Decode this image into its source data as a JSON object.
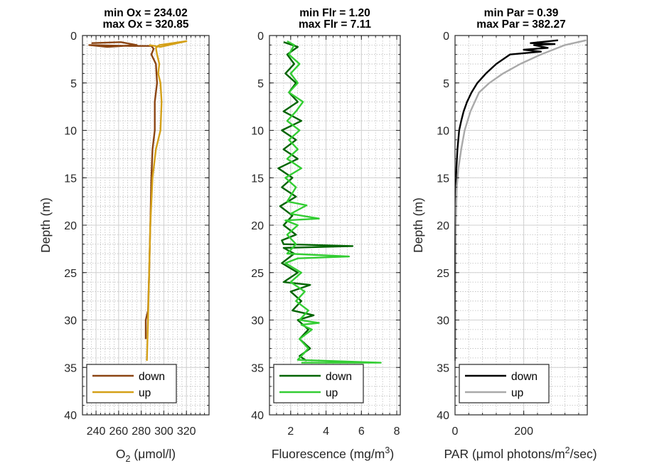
{
  "chart_data": [
    {
      "type": "line",
      "title": [
        "min Ox = 234.02",
        "max Ox = 320.85"
      ],
      "xlabel": "O_2 (μmol/l)",
      "ylabel": "Depth (m)",
      "xlim": [
        228,
        340
      ],
      "ylim": [
        0,
        40
      ],
      "y_reversed": true,
      "x_ticks": [
        240,
        260,
        280,
        300,
        320
      ],
      "y_ticks": [
        0,
        5,
        10,
        15,
        20,
        25,
        30,
        35,
        40
      ],
      "grid": true,
      "legend": "bottom-left",
      "series": [
        {
          "name": "down",
          "color": "#8b4513",
          "points": [
            [
              236,
              0.8
            ],
            [
              262,
              0.7
            ],
            [
              276,
              1.0
            ],
            [
              250,
              1.2
            ],
            [
              234,
              1.0
            ],
            [
              270,
              1.1
            ],
            [
              289,
              1.1
            ],
            [
              291,
              1.4
            ],
            [
              289,
              2.0
            ],
            [
              293,
              3.0
            ],
            [
              294,
              5.0
            ],
            [
              292,
              7.0
            ],
            [
              292,
              10.0
            ],
            [
              290,
              12.0
            ],
            [
              289,
              15.0
            ],
            [
              288,
              20.0
            ],
            [
              287,
              25.0
            ],
            [
              286,
              29.0
            ],
            [
              284,
              30.0
            ],
            [
              284,
              32.0
            ]
          ]
        },
        {
          "name": "up",
          "color": "#d4a017",
          "points": [
            [
              285,
              34.3
            ],
            [
              286,
              30.0
            ],
            [
              287,
              25.0
            ],
            [
              288,
              20.0
            ],
            [
              290,
              15.0
            ],
            [
              293,
              12.0
            ],
            [
              297,
              10.0
            ],
            [
              298,
              7.0
            ],
            [
              297,
              5.0
            ],
            [
              295,
              4.0
            ],
            [
              296,
              3.0
            ],
            [
              294,
              2.0
            ],
            [
              293,
              1.3
            ],
            [
              296,
              1.0
            ],
            [
              320,
              0.6
            ],
            [
              297,
              1.2
            ],
            [
              287,
              1.0
            ]
          ]
        }
      ]
    },
    {
      "type": "line",
      "title": [
        "min Flr = 1.20",
        "max Flr = 7.11"
      ],
      "xlabel": "Fluorescence (mg/m^3)",
      "ylabel": "",
      "xlim": [
        0.8,
        8.2
      ],
      "ylim": [
        0,
        40
      ],
      "y_reversed": true,
      "x_ticks": [
        2,
        4,
        6,
        8
      ],
      "y_ticks": [
        0,
        5,
        10,
        15,
        20,
        25,
        30,
        35,
        40
      ],
      "grid": true,
      "legend": "bottom-left",
      "series": [
        {
          "name": "down",
          "color": "#006400",
          "points": [
            [
              1.6,
              0.7
            ],
            [
              2.4,
              1.2
            ],
            [
              1.8,
              2.0
            ],
            [
              2.2,
              3.0
            ],
            [
              1.7,
              4.0
            ],
            [
              2.3,
              5.0
            ],
            [
              1.9,
              6.0
            ],
            [
              2.4,
              7.0
            ],
            [
              1.6,
              8.0
            ],
            [
              2.6,
              9.0
            ],
            [
              1.5,
              10.0
            ],
            [
              2.3,
              11.0
            ],
            [
              1.6,
              12.0
            ],
            [
              2.4,
              13.0
            ],
            [
              1.3,
              14.0
            ],
            [
              2.1,
              15.0
            ],
            [
              1.5,
              16.0
            ],
            [
              2.3,
              17.0
            ],
            [
              1.4,
              18.0
            ],
            [
              2.1,
              19.0
            ],
            [
              1.6,
              20.0
            ],
            [
              2.3,
              21.0
            ],
            [
              1.5,
              21.6
            ],
            [
              1.6,
              22.0
            ],
            [
              5.5,
              22.2
            ],
            [
              1.6,
              22.4
            ],
            [
              2.2,
              23.0
            ],
            [
              1.5,
              24.0
            ],
            [
              2.4,
              25.0
            ],
            [
              1.6,
              26.0
            ],
            [
              3.1,
              26.3
            ],
            [
              2.0,
              27.0
            ],
            [
              2.6,
              28.0
            ],
            [
              2.1,
              29.0
            ],
            [
              3.3,
              29.5
            ],
            [
              2.4,
              30.0
            ],
            [
              3.0,
              31.0
            ],
            [
              2.5,
              32.0
            ],
            [
              3.1,
              33.0
            ],
            [
              2.5,
              33.8
            ],
            [
              2.9,
              34.3
            ]
          ]
        },
        {
          "name": "up",
          "color": "#32cd32",
          "points": [
            [
              2.6,
              34.5
            ],
            [
              7.1,
              34.5
            ],
            [
              2.4,
              34.2
            ],
            [
              3.0,
              33.0
            ],
            [
              2.5,
              32.0
            ],
            [
              3.2,
              31.0
            ],
            [
              2.6,
              30.5
            ],
            [
              3.6,
              30.3
            ],
            [
              2.5,
              30.0
            ],
            [
              3.0,
              29.0
            ],
            [
              2.3,
              28.0
            ],
            [
              2.8,
              27.0
            ],
            [
              2.0,
              26.0
            ],
            [
              2.6,
              25.0
            ],
            [
              1.7,
              24.0
            ],
            [
              2.4,
              23.5
            ],
            [
              5.3,
              23.3
            ],
            [
              1.8,
              23.0
            ],
            [
              2.3,
              22.0
            ],
            [
              1.8,
              21.0
            ],
            [
              2.4,
              20.0
            ],
            [
              1.7,
              19.5
            ],
            [
              3.6,
              19.3
            ],
            [
              2.0,
              18.8
            ],
            [
              2.9,
              17.9
            ],
            [
              1.8,
              17.5
            ],
            [
              2.3,
              16.0
            ],
            [
              1.7,
              15.0
            ],
            [
              2.6,
              14.0
            ],
            [
              1.8,
              13.0
            ],
            [
              2.4,
              12.0
            ],
            [
              1.9,
              11.0
            ],
            [
              2.5,
              10.0
            ],
            [
              1.8,
              9.0
            ],
            [
              2.3,
              8.0
            ],
            [
              2.7,
              7.0
            ],
            [
              1.9,
              6.0
            ],
            [
              2.4,
              5.0
            ],
            [
              2.0,
              4.0
            ],
            [
              2.5,
              3.0
            ],
            [
              1.9,
              2.0
            ],
            [
              2.2,
              1.0
            ],
            [
              1.8,
              0.6
            ]
          ]
        }
      ]
    },
    {
      "type": "line",
      "title": [
        "min Par = 0.39",
        "max Par = 382.27"
      ],
      "xlabel": "PAR (μmol photons/m^2/sec)",
      "ylabel": "Depth (m)",
      "xlim": [
        0,
        385
      ],
      "ylim": [
        0,
        40
      ],
      "y_reversed": true,
      "x_ticks": [
        0,
        200
      ],
      "y_ticks": [
        0,
        5,
        10,
        15,
        20,
        25,
        30,
        35,
        40
      ],
      "grid": true,
      "legend": "bottom-left",
      "series": [
        {
          "name": "down",
          "color": "#000000",
          "points": [
            [
              300,
              0.5
            ],
            [
              220,
              0.8
            ],
            [
              290,
              0.9
            ],
            [
              230,
              1.0
            ],
            [
              270,
              1.3
            ],
            [
              200,
              1.5
            ],
            [
              250,
              1.7
            ],
            [
              160,
              2.0
            ],
            [
              120,
              3.0
            ],
            [
              90,
              4.0
            ],
            [
              65,
              5.0
            ],
            [
              48,
              6.0
            ],
            [
              35,
              7.0
            ],
            [
              25,
              8.0
            ],
            [
              18,
              9.0
            ],
            [
              12,
              10.0
            ],
            [
              7,
              12.0
            ],
            [
              4,
              14.0
            ],
            [
              2,
              16.0
            ],
            [
              1,
              20.0
            ],
            [
              0.5,
              25.0
            ],
            [
              0.4,
              30.0
            ],
            [
              0.4,
              32.0
            ]
          ]
        },
        {
          "name": "up",
          "color": "#a9a9a9",
          "points": [
            [
              0.4,
              34.3
            ],
            [
              0.5,
              30.0
            ],
            [
              1,
              25.0
            ],
            [
              2,
              20.0
            ],
            [
              5,
              16.0
            ],
            [
              10,
              14.0
            ],
            [
              18,
              12.0
            ],
            [
              28,
              10.0
            ],
            [
              45,
              8.0
            ],
            [
              70,
              6.0
            ],
            [
              100,
              5.0
            ],
            [
              140,
              4.0
            ],
            [
              190,
              3.0
            ],
            [
              250,
              2.0
            ],
            [
              320,
              1.0
            ],
            [
              382,
              0.5
            ]
          ]
        }
      ]
    }
  ]
}
